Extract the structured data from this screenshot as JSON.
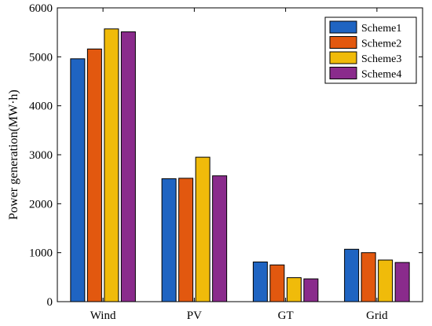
{
  "chart_data": {
    "type": "bar",
    "title": "",
    "xlabel": "",
    "ylabel": "Power generation(MW·h)",
    "ylim": [
      0,
      6000
    ],
    "yticks": [
      0,
      1000,
      2000,
      3000,
      4000,
      5000,
      6000
    ],
    "grid": false,
    "legend_position": "top-right",
    "categories": [
      "Wind",
      "PV",
      "GT",
      "Grid"
    ],
    "series": [
      {
        "name": "Scheme1",
        "color": "#1f64c2",
        "values": [
          4960,
          2510,
          810,
          1070
        ]
      },
      {
        "name": "Scheme2",
        "color": "#e2580f",
        "values": [
          5160,
          2520,
          750,
          1000
        ]
      },
      {
        "name": "Scheme3",
        "color": "#f0bb0a",
        "values": [
          5570,
          2950,
          490,
          850
        ]
      },
      {
        "name": "Scheme4",
        "color": "#8a2b8c",
        "values": [
          5510,
          2570,
          465,
          800
        ]
      }
    ]
  }
}
